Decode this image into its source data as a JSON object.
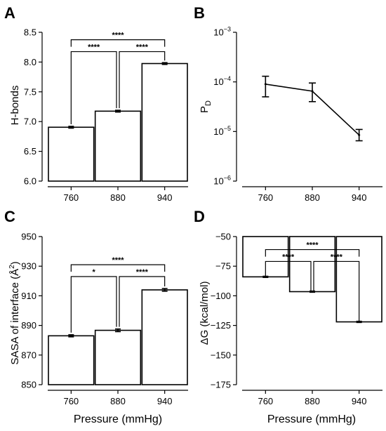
{
  "chart_data": [
    {
      "panel": "A",
      "type": "bar",
      "categories": [
        "760",
        "880",
        "940"
      ],
      "values": [
        6.905,
        7.175,
        7.975
      ],
      "errors": [
        0.015,
        0.015,
        0.015
      ],
      "ylabel": "H-bonds",
      "xlabel": "",
      "ylim": [
        6.0,
        8.5
      ],
      "yticks": [
        "6.0",
        "6.5",
        "7.0",
        "7.5",
        "8.0",
        "8.5"
      ],
      "significance": [
        {
          "from": 0,
          "to": 1,
          "label": "****",
          "level": 8.175
        },
        {
          "from": 1,
          "to": 2,
          "label": "****",
          "level": 8.175
        },
        {
          "from": 0,
          "to": 2,
          "label": "****",
          "level": 8.375
        }
      ]
    },
    {
      "panel": "B",
      "type": "line",
      "x": [
        "760",
        "880",
        "940"
      ],
      "values": [
        9e-05,
        6.5e-05,
        8.5e-06
      ],
      "err_low": [
        5e-05,
        4e-05,
        6.5e-06
      ],
      "err_high": [
        0.00013,
        9.5e-05,
        1.1e-05
      ],
      "ylabel_main": "P",
      "ylabel_sub": "D",
      "yscale": "log",
      "ylim": [
        1e-06,
        0.001
      ],
      "yticks": [
        {
          "base": "10",
          "exp": "−6"
        },
        {
          "base": "10",
          "exp": "−5"
        },
        {
          "base": "10",
          "exp": "−4"
        },
        {
          "base": "10",
          "exp": "−3"
        }
      ]
    },
    {
      "panel": "C",
      "type": "bar",
      "categories": [
        "760",
        "880",
        "940"
      ],
      "values": [
        883.0,
        886.7,
        914.0
      ],
      "errors": [
        0.7,
        0.9,
        0.9
      ],
      "ylabel_main": "SASA of interface (Å",
      "ylabel_sup": "2",
      "ylabel_end": ")",
      "xlabel": "Pressure (mmHg)",
      "ylim": [
        850,
        950
      ],
      "yticks": [
        "850",
        "870",
        "890",
        "910",
        "930",
        "950"
      ],
      "significance": [
        {
          "from": 0,
          "to": 1,
          "label": "*",
          "level": 923
        },
        {
          "from": 1,
          "to": 2,
          "label": "****",
          "level": 923
        },
        {
          "from": 0,
          "to": 2,
          "label": "****",
          "level": 931
        }
      ]
    },
    {
      "panel": "D",
      "type": "bar",
      "categories": [
        "760",
        "880",
        "940"
      ],
      "values": [
        -84.0,
        -96.5,
        -122.0
      ],
      "errors": [
        0.5,
        0.5,
        0.5
      ],
      "ylabel": "ΔG (kcal/mol)",
      "xlabel": "Pressure (mmHg)",
      "ylim": [
        -175,
        -50
      ],
      "yticks": [
        "−175",
        "−150",
        "−125",
        "−100",
        "−75",
        "−50"
      ],
      "significance": [
        {
          "from": 0,
          "to": 1,
          "label": "****",
          "level": -71
        },
        {
          "from": 1,
          "to": 2,
          "label": "****",
          "level": -71
        },
        {
          "from": 0,
          "to": 2,
          "label": "****",
          "level": -61
        }
      ]
    }
  ]
}
